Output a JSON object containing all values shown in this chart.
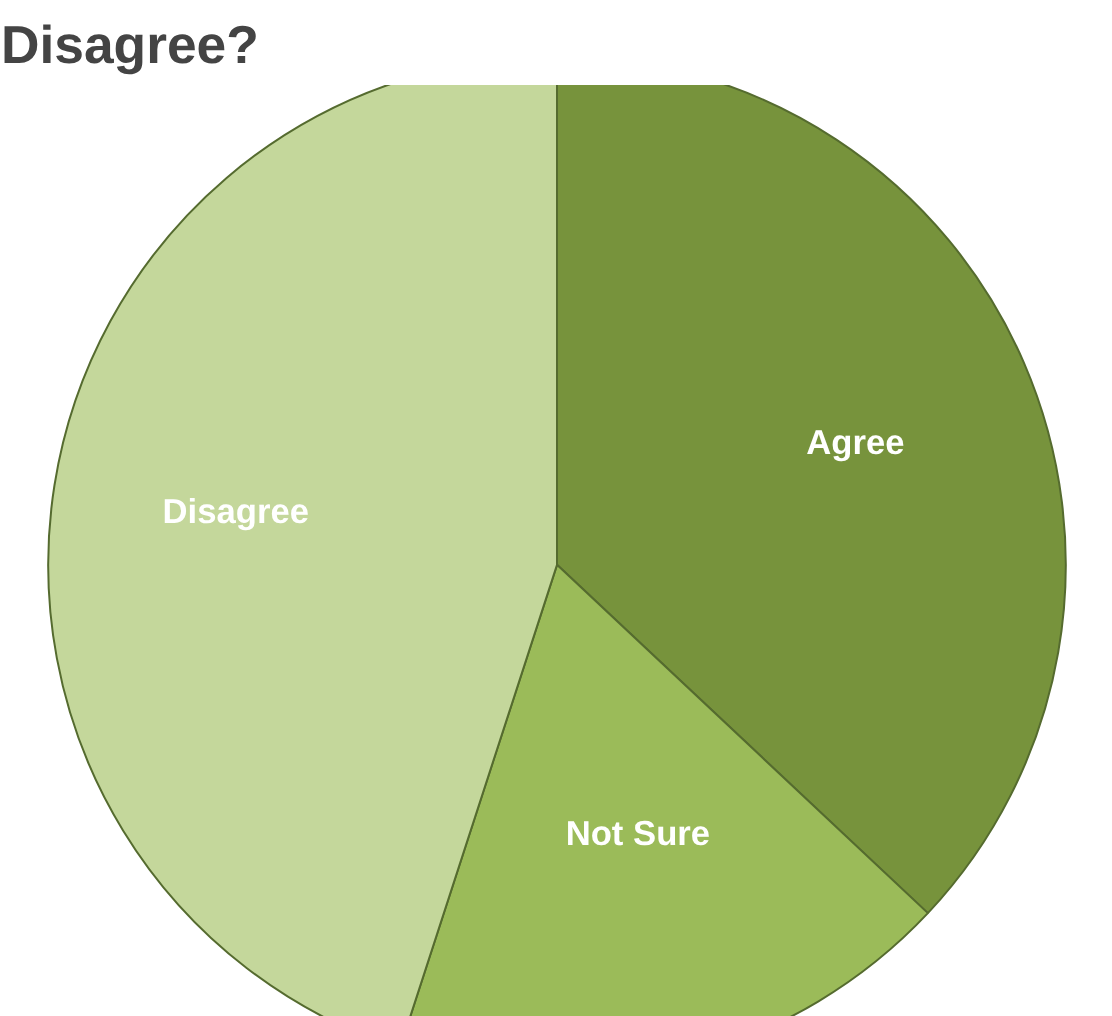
{
  "chart_data": {
    "type": "pie",
    "title": "Disagree?",
    "categories": [
      "Agree",
      "Not Sure",
      "Disagree"
    ],
    "values": [
      37,
      18,
      45
    ],
    "colors": [
      "#77933c",
      "#9bbb59",
      "#c4d79b"
    ]
  }
}
